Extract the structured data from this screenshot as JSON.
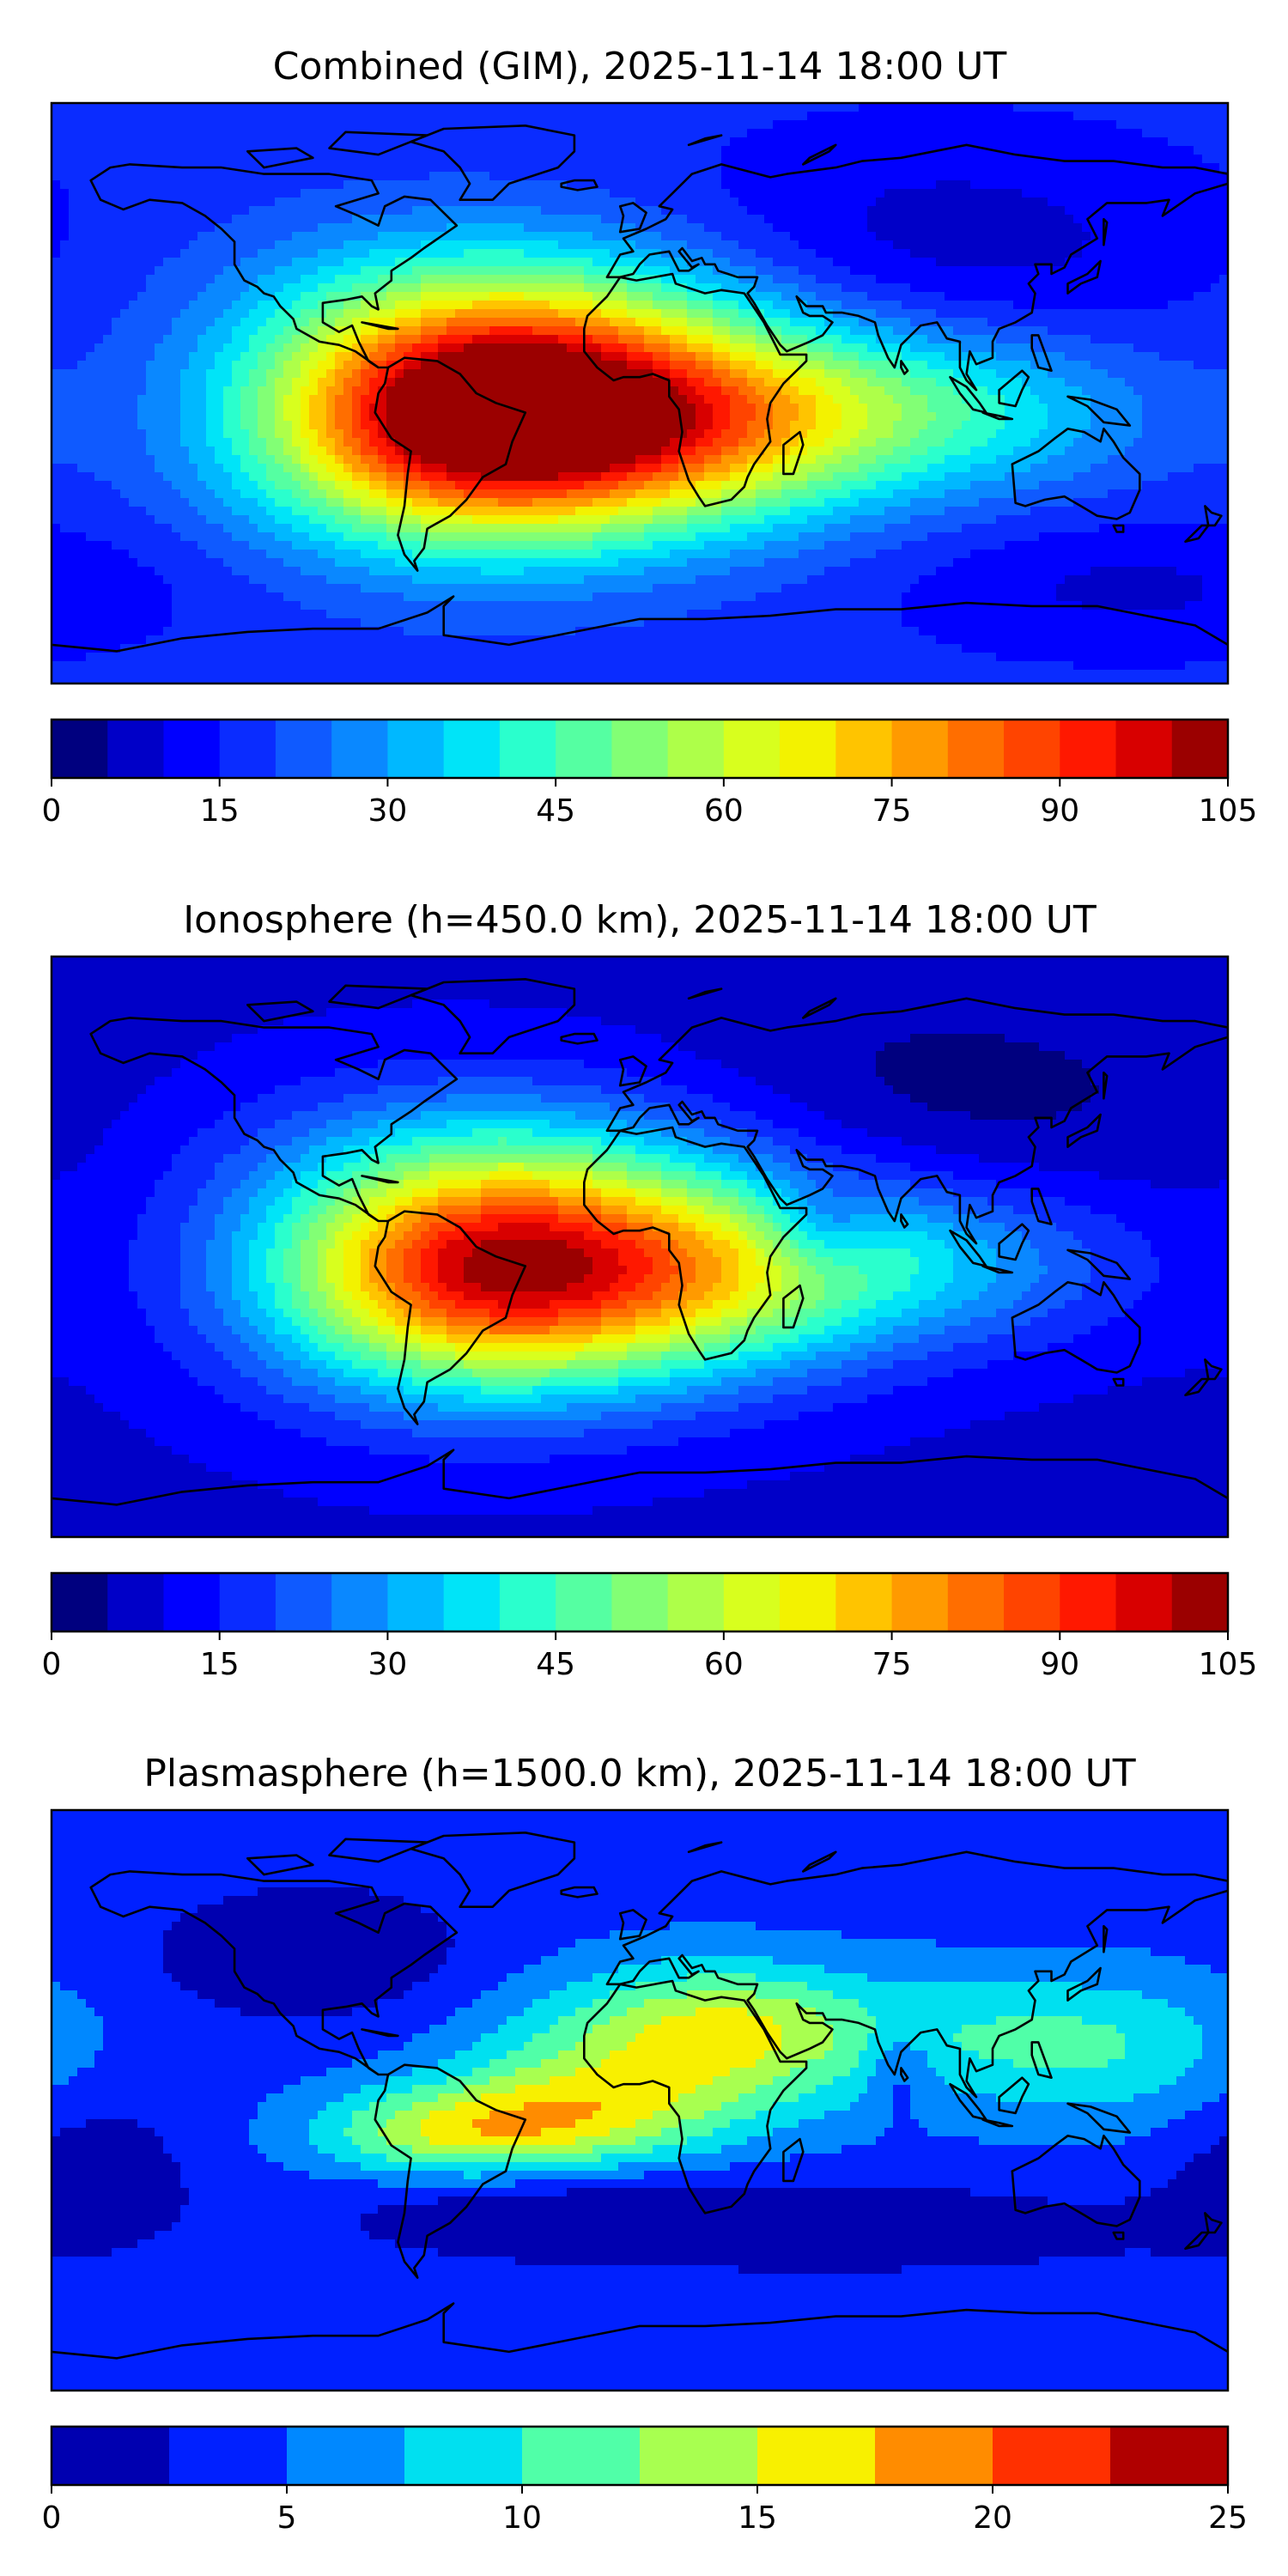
{
  "panels": [
    {
      "id": "combined",
      "title": "Combined (GIM), 2025-11-14 18:00 UT",
      "colorbar": {
        "min": 0,
        "max": 105,
        "step": 5,
        "ticks": [
          "0",
          "15",
          "30",
          "45",
          "60",
          "75",
          "90",
          "105"
        ],
        "colors": [
          "#00007f",
          "#0000c8",
          "#0000ff",
          "#0a2cff",
          "#0f5aff",
          "#0a88ff",
          "#00b8ff",
          "#00e4f8",
          "#2affcd",
          "#55ffa2",
          "#82ff75",
          "#aeff49",
          "#d8ff1e",
          "#f3f200",
          "#ffc400",
          "#ff9a00",
          "#ff6e00",
          "#ff4400",
          "#ff1800",
          "#d80000",
          "#9b0000"
        ]
      },
      "field": {
        "background": 17,
        "blobs": [
          {
            "lon": -55,
            "lat": -8,
            "value": 72,
            "lonWidth": 45,
            "latWidth": 26
          },
          {
            "lon": -20,
            "lat": -5,
            "value": 40,
            "lonWidth": 45,
            "latWidth": 24
          },
          {
            "lon": 25,
            "lat": -10,
            "value": 26,
            "lonWidth": 40,
            "latWidth": 22
          },
          {
            "lon": 70,
            "lat": -5,
            "value": 20,
            "lonWidth": 40,
            "latWidth": 18
          },
          {
            "lon": 120,
            "lat": -5,
            "value": 10,
            "lonWidth": 35,
            "latWidth": 18
          },
          {
            "lon": -40,
            "lat": 30,
            "value": 12,
            "lonWidth": 60,
            "latWidth": 20
          },
          {
            "lon": 90,
            "lat": 45,
            "value": -10,
            "lonWidth": 60,
            "latWidth": 25
          },
          {
            "lon": 150,
            "lat": -60,
            "value": -8,
            "lonWidth": 50,
            "latWidth": 15
          }
        ]
      }
    },
    {
      "id": "ionosphere",
      "title": "Ionosphere  (h=450.0 km), 2025-11-14 18:00 UT",
      "colorbar": {
        "min": 0,
        "max": 105,
        "step": 5,
        "ticks": [
          "0",
          "15",
          "30",
          "45",
          "60",
          "75",
          "90",
          "105"
        ],
        "colors": [
          "#00007f",
          "#0000c8",
          "#0000ff",
          "#0a2cff",
          "#0f5aff",
          "#0a88ff",
          "#00b8ff",
          "#00e4f8",
          "#2affcd",
          "#55ffa2",
          "#82ff75",
          "#aeff49",
          "#d8ff1e",
          "#f3f200",
          "#ffc400",
          "#ff9a00",
          "#ff6e00",
          "#ff4400",
          "#ff1800",
          "#d80000",
          "#9b0000"
        ]
      },
      "field": {
        "background": 9,
        "blobs": [
          {
            "lon": -55,
            "lat": -8,
            "value": 62,
            "lonWidth": 45,
            "latWidth": 26
          },
          {
            "lon": -20,
            "lat": -5,
            "value": 32,
            "lonWidth": 45,
            "latWidth": 24
          },
          {
            "lon": 25,
            "lat": -10,
            "value": 24,
            "lonWidth": 40,
            "latWidth": 22
          },
          {
            "lon": 70,
            "lat": -5,
            "value": 18,
            "lonWidth": 40,
            "latWidth": 18
          },
          {
            "lon": 120,
            "lat": -5,
            "value": 8,
            "lonWidth": 35,
            "latWidth": 18
          },
          {
            "lon": -40,
            "lat": 30,
            "value": 10,
            "lonWidth": 60,
            "latWidth": 20
          },
          {
            "lon": 90,
            "lat": 45,
            "value": -6,
            "lonWidth": 60,
            "latWidth": 25
          },
          {
            "lon": 55,
            "lat": 5,
            "value": -14,
            "lonWidth": 12,
            "latWidth": 10
          }
        ]
      }
    },
    {
      "id": "plasmasphere",
      "title": "Plasmasphere (h=1500.0 km), 2025-11-14 18:00 UT",
      "colorbar": {
        "min": 0,
        "max": 25,
        "step": 2.5,
        "ticks": [
          "0",
          "5",
          "10",
          "15",
          "20",
          "25"
        ],
        "colors": [
          "#0000b0",
          "#0020ff",
          "#0088ff",
          "#00e0f0",
          "#50ffa8",
          "#a8ff50",
          "#f8f000",
          "#ff8c00",
          "#ff3000",
          "#b00000"
        ]
      },
      "field": {
        "background": 4,
        "blobs": [
          {
            "lon": 10,
            "lat": 15,
            "value": 9,
            "lonWidth": 40,
            "latWidth": 18
          },
          {
            "lon": -60,
            "lat": -10,
            "value": 9,
            "lonWidth": 30,
            "latWidth": 10
          },
          {
            "lon": -20,
            "lat": -5,
            "value": 7,
            "lonWidth": 30,
            "latWidth": 12
          },
          {
            "lon": 30,
            "lat": 25,
            "value": 4,
            "lonWidth": 25,
            "latWidth": 12
          },
          {
            "lon": 110,
            "lat": 20,
            "value": 5,
            "lonWidth": 45,
            "latWidth": 15
          },
          {
            "lon": 150,
            "lat": 10,
            "value": 3,
            "lonWidth": 30,
            "latWidth": 18
          },
          {
            "lon": 80,
            "lat": 10,
            "value": -4,
            "lonWidth": 8,
            "latWidth": 10
          },
          {
            "lon": -100,
            "lat": 45,
            "value": -4,
            "lonWidth": 35,
            "latWidth": 15
          },
          {
            "lon": -20,
            "lat": -35,
            "value": -4,
            "lonWidth": 50,
            "latWidth": 10
          },
          {
            "lon": 80,
            "lat": -40,
            "value": -3,
            "lonWidth": 60,
            "latWidth": 10
          },
          {
            "lon": -170,
            "lat": -20,
            "value": -3,
            "lonWidth": 25,
            "latWidth": 20
          }
        ]
      }
    }
  ]
}
